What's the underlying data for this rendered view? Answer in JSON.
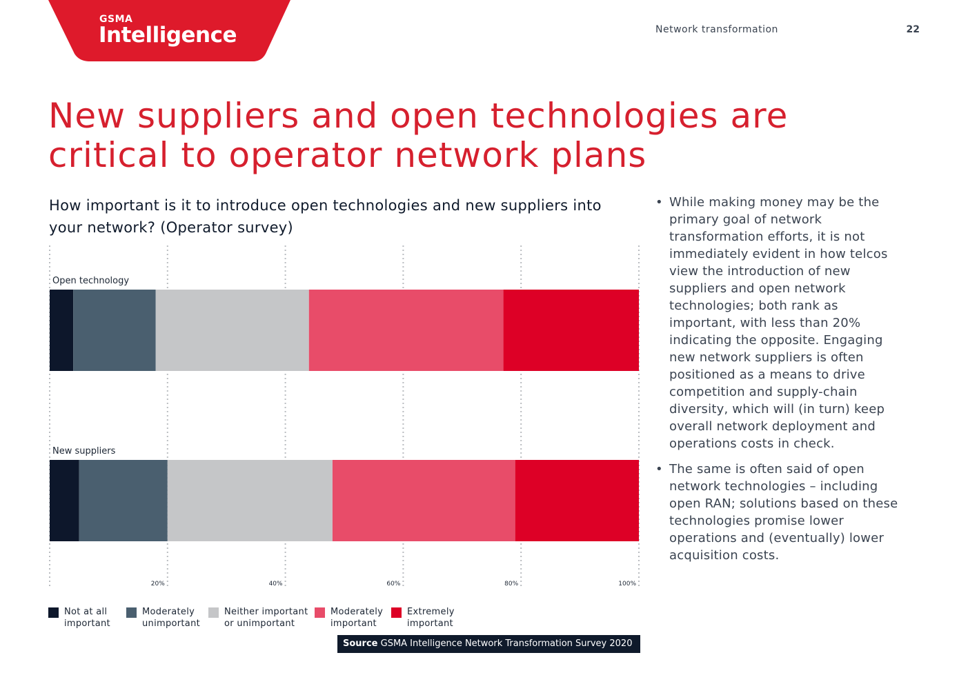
{
  "header": {
    "brand_small": "GSMA",
    "brand_name": "Intelligence",
    "section_label": "Network transformation",
    "page_number": "22",
    "brand_color": "#de1a2b"
  },
  "page_title": "New suppliers and open technologies are critical to operator network plans",
  "chart_question": "How important is it to introduce open technologies and new suppliers into your network? (Operator survey)",
  "chart_data": {
    "type": "bar",
    "orientation": "horizontal",
    "stacked": true,
    "categories": [
      "Open technology",
      "New suppliers"
    ],
    "series": [
      {
        "name": "Not at all\nimportant",
        "color": "#0d172b",
        "values": [
          4,
          5
        ]
      },
      {
        "name": "Moderately\nunimportant",
        "color": "#4a5f6f",
        "values": [
          14,
          15
        ]
      },
      {
        "name": "Neither important\nor unimportant",
        "color": "#c5c6c8",
        "values": [
          26,
          28
        ]
      },
      {
        "name": "Moderately\nimportant",
        "color": "#e84c69",
        "values": [
          33,
          31
        ]
      },
      {
        "name": "Extremely\nimportant",
        "color": "#dd0026",
        "values": [
          23,
          21
        ]
      }
    ],
    "xlim": [
      0,
      100
    ],
    "xticks": [
      "20%",
      "40%",
      "60%",
      "80%",
      "100%"
    ],
    "grid": true
  },
  "source": {
    "label": "Source",
    "text": " GSMA Intelligence Network Transformation Survey 2020"
  },
  "bullets": [
    "While making money may be the primary goal of network transformation efforts, it is not immediately evident in how telcos view the introduction of new suppliers and open network technologies; both rank as important, with less than 20% indicating the opposite. Engaging new network suppliers is often positioned as a means to drive competition and supply-chain diversity, which will (in turn) keep overall network deployment and operations costs in check.",
    "The same is often said of open network technologies – including open RAN; solutions based on these technologies promise lower operations and (eventually) lower acquisition costs."
  ]
}
